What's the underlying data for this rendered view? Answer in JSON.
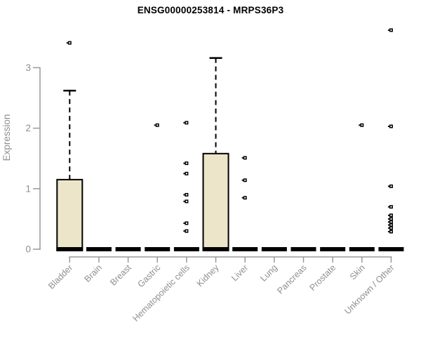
{
  "chart_data": {
    "type": "box",
    "title": "ENSG00000253814 - MRPS36P3",
    "ylabel": "Expression",
    "xlabel": "",
    "yticks": [
      0,
      1,
      2,
      3
    ],
    "ylim": [
      0,
      3.7
    ],
    "grid": false,
    "legend": "none",
    "categories": [
      "Bladder",
      "Brain",
      "Breast",
      "Gastric",
      "Hematopoietic cells",
      "Kidney",
      "Liver",
      "Lung",
      "Pancreas",
      "Prostate",
      "Skin",
      "Unknown / Other"
    ],
    "boxes": [
      {
        "category": "Bladder",
        "q1": 0,
        "median": 0,
        "q3": 1.15,
        "whisker_low": 0,
        "whisker_high": 2.62,
        "outliers": [
          3.41
        ]
      },
      {
        "category": "Brain",
        "q1": 0,
        "median": 0,
        "q3": 0,
        "whisker_low": 0,
        "whisker_high": 0,
        "outliers": []
      },
      {
        "category": "Breast",
        "q1": 0,
        "median": 0,
        "q3": 0,
        "whisker_low": 0,
        "whisker_high": 0,
        "outliers": []
      },
      {
        "category": "Gastric",
        "q1": 0,
        "median": 0,
        "q3": 0,
        "whisker_low": 0,
        "whisker_high": 0,
        "outliers": [
          2.05
        ]
      },
      {
        "category": "Hematopoietic cells",
        "q1": 0,
        "median": 0,
        "q3": 0,
        "whisker_low": 0,
        "whisker_high": 0,
        "outliers": [
          2.09,
          1.42,
          1.25,
          0.9,
          0.79,
          0.43,
          0.3
        ]
      },
      {
        "category": "Kidney",
        "q1": 0,
        "median": 0,
        "q3": 1.58,
        "whisker_low": 0,
        "whisker_high": 3.16,
        "outliers": []
      },
      {
        "category": "Liver",
        "q1": 0,
        "median": 0,
        "q3": 0,
        "whisker_low": 0,
        "whisker_high": 0,
        "outliers": [
          1.51,
          1.14,
          0.85
        ]
      },
      {
        "category": "Lung",
        "q1": 0,
        "median": 0,
        "q3": 0,
        "whisker_low": 0,
        "whisker_high": 0,
        "outliers": []
      },
      {
        "category": "Pancreas",
        "q1": 0,
        "median": 0,
        "q3": 0,
        "whisker_low": 0,
        "whisker_high": 0,
        "outliers": []
      },
      {
        "category": "Prostate",
        "q1": 0,
        "median": 0,
        "q3": 0,
        "whisker_low": 0,
        "whisker_high": 0,
        "outliers": []
      },
      {
        "category": "Skin",
        "q1": 0,
        "median": 0,
        "q3": 0,
        "whisker_low": 0,
        "whisker_high": 0,
        "outliers": [
          2.05
        ]
      },
      {
        "category": "Unknown / Other",
        "q1": 0,
        "median": 0,
        "q3": 0,
        "whisker_low": 0,
        "whisker_high": 0,
        "outliers": [
          3.62,
          2.03,
          1.04,
          0.7,
          0.56,
          0.5,
          0.45,
          0.4,
          0.35,
          0.29
        ]
      }
    ],
    "colors": {
      "box_fill": "#ECE5C9",
      "box_border": "#000000",
      "whisker": "#000000",
      "outlier": "#000000",
      "axis": "#999999",
      "tick_label": "#8F8F8F",
      "title": "#000000",
      "background": "#FFFFFF"
    }
  }
}
